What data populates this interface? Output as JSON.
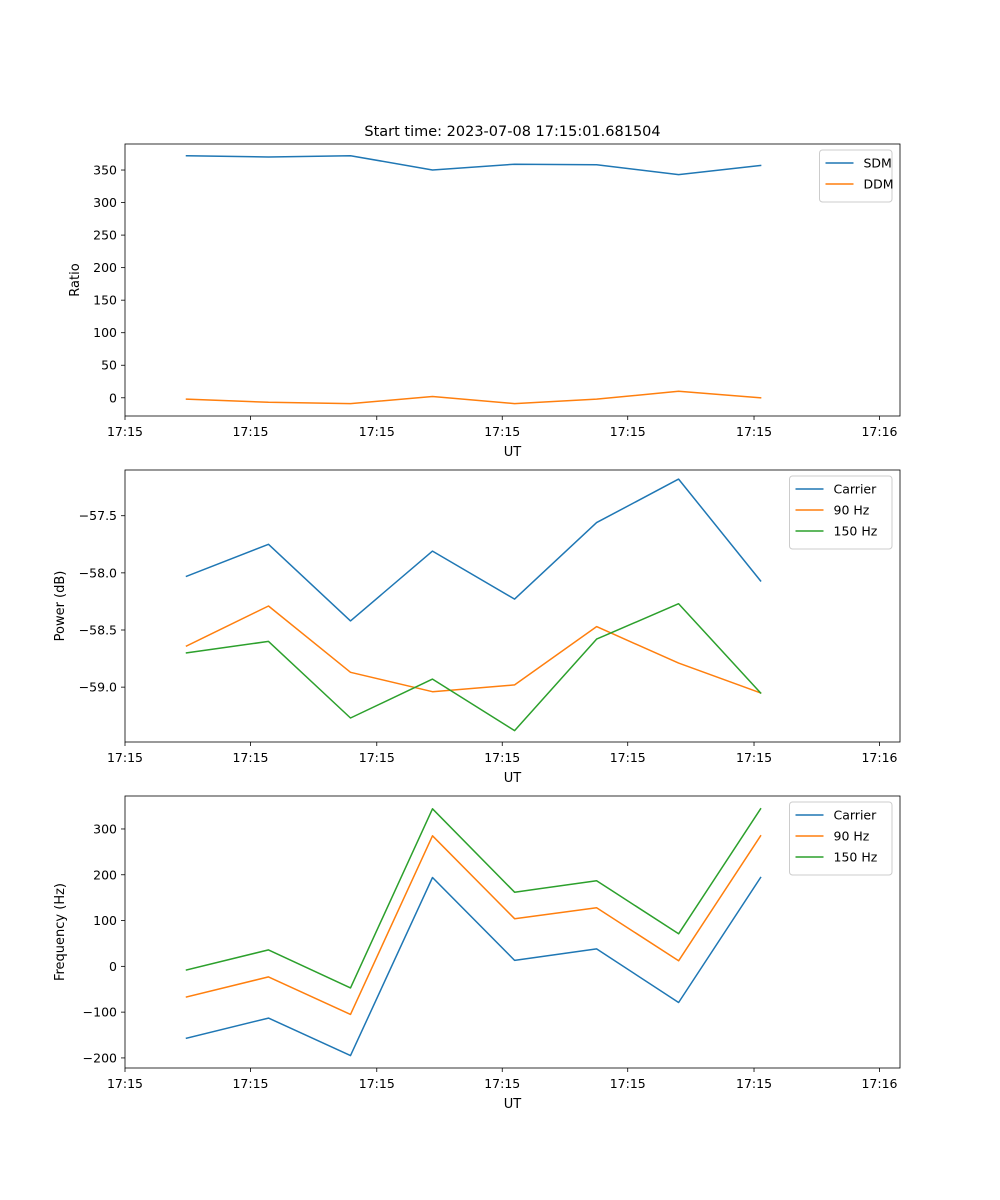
{
  "chart_data": [
    {
      "type": "line",
      "title": "Start time: 2023-07-08 17:15:01.681504",
      "xlabel": "UT",
      "ylabel": "Ratio",
      "x": [
        0,
        1,
        2,
        3,
        4,
        5,
        6,
        7
      ],
      "xlim": [
        -0.75,
        8.7
      ],
      "xticks": [
        -0.75,
        0.78,
        2.32,
        3.85,
        5.38,
        6.92,
        8.45
      ],
      "xticklabels": [
        "17:15",
        "17:15",
        "17:15",
        "17:15",
        "17:15",
        "17:15",
        "17:16"
      ],
      "ylim": [
        -28,
        390
      ],
      "yticks": [
        0,
        50,
        100,
        150,
        200,
        250,
        300,
        350
      ],
      "yticklabels": [
        "0",
        "50",
        "100",
        "150",
        "200",
        "250",
        "300",
        "350"
      ],
      "legend": "top-right",
      "series": [
        {
          "name": "SDM",
          "color": "#1f77b4",
          "values": [
            372,
            370,
            372,
            350,
            359,
            358,
            343,
            357
          ]
        },
        {
          "name": "DDM",
          "color": "#ff7f0e",
          "values": [
            -2,
            -7,
            -9,
            2,
            -9,
            -2,
            10,
            0
          ]
        }
      ]
    },
    {
      "type": "line",
      "title": "",
      "xlabel": "UT",
      "ylabel": "Power (dB)",
      "x": [
        0,
        1,
        2,
        3,
        4,
        5,
        6,
        7
      ],
      "xlim": [
        -0.75,
        8.7
      ],
      "xticks": [
        -0.75,
        0.78,
        2.32,
        3.85,
        5.38,
        6.92,
        8.45
      ],
      "xticklabels": [
        "17:15",
        "17:15",
        "17:15",
        "17:15",
        "17:15",
        "17:15",
        "17:16"
      ],
      "ylim": [
        -59.48,
        -57.1
      ],
      "yticks": [
        -59.0,
        -58.5,
        -58.0,
        -57.5
      ],
      "yticklabels": [
        "−59.0",
        "−58.5",
        "−58.0",
        "−57.5"
      ],
      "legend": "top-right",
      "series": [
        {
          "name": "Carrier",
          "color": "#1f77b4",
          "values": [
            -58.03,
            -57.75,
            -58.42,
            -57.81,
            -58.23,
            -57.56,
            -57.18,
            -58.07
          ]
        },
        {
          "name": "90 Hz",
          "color": "#ff7f0e",
          "values": [
            -58.64,
            -58.29,
            -58.87,
            -59.04,
            -58.98,
            -58.47,
            -58.79,
            -59.05
          ]
        },
        {
          "name": "150 Hz",
          "color": "#2ca02c",
          "values": [
            -58.7,
            -58.6,
            -59.27,
            -58.93,
            -59.38,
            -58.58,
            -58.27,
            -59.05
          ]
        }
      ]
    },
    {
      "type": "line",
      "title": "",
      "xlabel": "UT",
      "ylabel": "Frequency (Hz)",
      "x": [
        0,
        1,
        2,
        3,
        4,
        5,
        6,
        7
      ],
      "xlim": [
        -0.75,
        8.7
      ],
      "xticks": [
        -0.75,
        0.78,
        2.32,
        3.85,
        5.38,
        6.92,
        8.45
      ],
      "xticklabels": [
        "17:15",
        "17:15",
        "17:15",
        "17:15",
        "17:15",
        "17:15",
        "17:16"
      ],
      "ylim": [
        -222,
        372
      ],
      "yticks": [
        -200,
        -100,
        0,
        100,
        200,
        300
      ],
      "yticklabels": [
        "−200",
        "−100",
        "0",
        "100",
        "200",
        "300"
      ],
      "legend": "top-right",
      "series": [
        {
          "name": "Carrier",
          "color": "#1f77b4",
          "values": [
            -157,
            -113,
            -195,
            194,
            13,
            38,
            -79,
            194
          ]
        },
        {
          "name": "90 Hz",
          "color": "#ff7f0e",
          "values": [
            -67,
            -23,
            -105,
            285,
            104,
            128,
            12,
            285
          ]
        },
        {
          "name": "150 Hz",
          "color": "#2ca02c",
          "values": [
            -8,
            36,
            -47,
            344,
            162,
            187,
            71,
            344
          ]
        }
      ]
    }
  ]
}
